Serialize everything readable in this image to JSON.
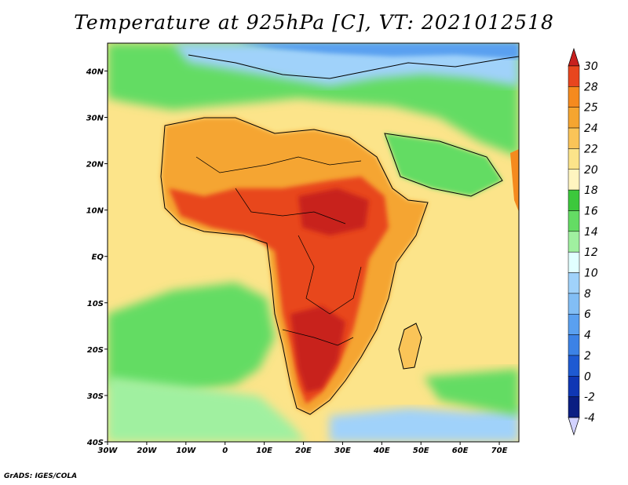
{
  "title": "Temperature at 925hPa [C], VT: 2021012518",
  "credit": "GrADS: IGES/COLA",
  "map": {
    "lon_range": [
      -30,
      75
    ],
    "lat_range": [
      -40,
      46
    ],
    "lon_ticks": [
      "30W",
      "20W",
      "10W",
      "0",
      "10E",
      "20E",
      "30E",
      "40E",
      "50E",
      "60E",
      "70E"
    ],
    "lat_ticks": [
      "40S",
      "30S",
      "20S",
      "10S",
      "EQ",
      "10N",
      "20N",
      "30N",
      "40N"
    ],
    "ocean_color": "#fce48a",
    "land_hot_color": "#f0801e"
  },
  "colorbar": {
    "levels": [
      "30",
      "28",
      "25",
      "24",
      "22",
      "20",
      "18",
      "16",
      "14",
      "12",
      "10",
      "8",
      "6",
      "4",
      "2",
      "0",
      "-2",
      "-4"
    ],
    "colors": [
      "#c8201e",
      "#e8461e",
      "#f58a1e",
      "#f5a530",
      "#fac458",
      "#fce48a",
      "#fff5c0",
      "#3cc83c",
      "#64dc64",
      "#a0f0a0",
      "#e1ffff",
      "#a0d2fa",
      "#82bef5",
      "#5aa0f0",
      "#3c82e6",
      "#1e5ad2",
      "#0f37b4",
      "#0a1e82",
      "#d2d2ff"
    ]
  }
}
